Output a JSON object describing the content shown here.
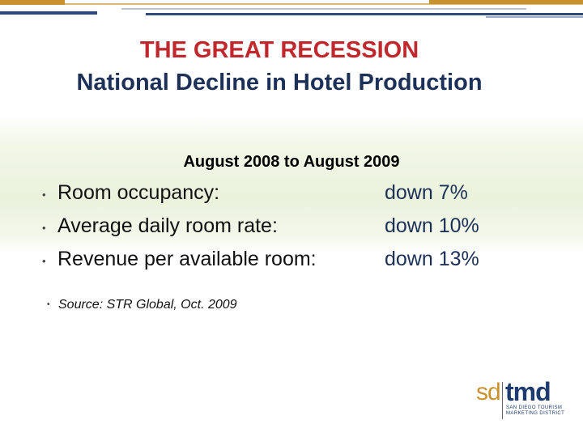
{
  "slide": {
    "title_line1": "THE GREAT RECESSION",
    "title_line2": "National Decline in Hotel Production",
    "subtitle": "August 2008 to August 2009",
    "stats": [
      {
        "label": "Room occupancy:",
        "value": "down 7%"
      },
      {
        "label": "Average daily room rate:",
        "value": "down 10%"
      },
      {
        "label": "Revenue per available room:",
        "value": "down 13%"
      }
    ],
    "source": "Source: STR Global, Oct. 2009",
    "bullet_glyph": "•"
  },
  "logo": {
    "left_text": "sd",
    "right_text": "tmd",
    "tagline": "SAN DIEGO TOURISM\nMARKETING DISTRICT"
  },
  "colors": {
    "title_red": "#c0282d",
    "title_navy": "#1d3158",
    "logo_gold": "#c8922e",
    "logo_navy": "#1d3b6e",
    "band_green": "#eaf2dc"
  }
}
